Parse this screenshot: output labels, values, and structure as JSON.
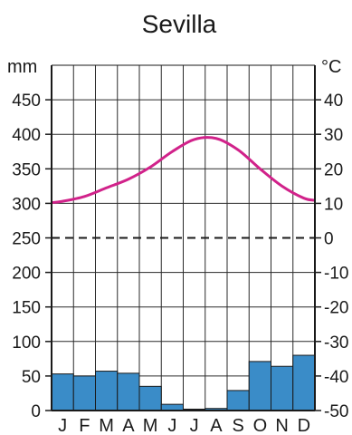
{
  "chart_data": {
    "type": "bar+line",
    "title": "Sevilla",
    "categories": [
      "J",
      "F",
      "M",
      "A",
      "M",
      "J",
      "J",
      "A",
      "S",
      "O",
      "N",
      "D"
    ],
    "series": [
      {
        "name": "",
        "type": "bar",
        "axis": "left",
        "unit": "mm",
        "values": [
          53,
          50,
          57,
          54,
          35,
          9,
          2,
          3,
          29,
          71,
          64,
          80
        ],
        "color": "#3a8cc8"
      },
      {
        "name": "",
        "type": "line",
        "axis": "right",
        "unit": "°C",
        "values": [
          10.6,
          12.0,
          14.5,
          17.0,
          20.5,
          25.0,
          28.5,
          28.8,
          25.5,
          20.0,
          15.0,
          11.5
        ],
        "color": "#d1228a"
      }
    ],
    "left_axis": {
      "label": "mm",
      "range": [
        0,
        500
      ],
      "ticks": [
        "0",
        "50",
        "100",
        "150",
        "200",
        "250",
        "300",
        "350",
        "400",
        "450"
      ]
    },
    "right_axis": {
      "label": "°C",
      "range": [
        -50,
        50
      ],
      "ticks": [
        "-50",
        "-40",
        "-30",
        "-20",
        "-10",
        "0",
        "10",
        "20",
        "30",
        "40"
      ]
    },
    "zero_line": {
      "style": "dashed",
      "value_celsius": 0
    },
    "grid": true,
    "legend": "none"
  }
}
